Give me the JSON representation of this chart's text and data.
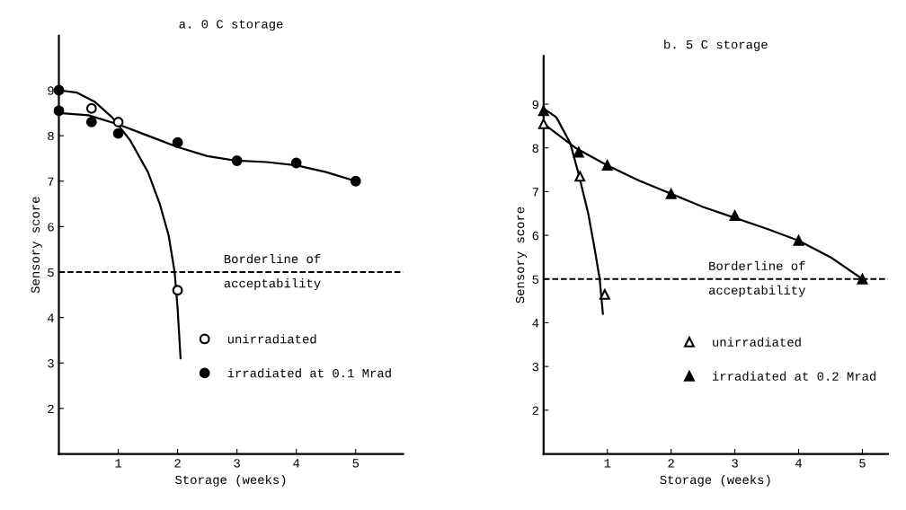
{
  "chart_data": [
    {
      "type": "scatter",
      "title": "a. 0 C storage",
      "xlabel": "Storage (weeks)",
      "ylabel": "Sensory score",
      "xlim": [
        0,
        5.8
      ],
      "ylim": [
        1,
        10.2
      ],
      "xticks": [
        1,
        2,
        3,
        4,
        5
      ],
      "yticks": [
        2,
        3,
        4,
        5,
        6,
        7,
        8,
        9
      ],
      "grid": false,
      "legend": "lower right",
      "ref_lines": [
        {
          "axis": "y",
          "value": 5,
          "label": "Borderline of\nacceptability",
          "color": "#000000",
          "line_style": "dashed"
        }
      ],
      "series": [
        {
          "type": "line",
          "color": "#000000",
          "marker": "none",
          "x": [
            0,
            0.3,
            0.6,
            0.9,
            1.2,
            1.5,
            1.7,
            1.85,
            1.95,
            2.0,
            2.05
          ],
          "values": [
            9,
            8.95,
            8.75,
            8.4,
            7.9,
            7.2,
            6.5,
            5.8,
            5.0,
            4.2,
            3.1
          ]
        },
        {
          "type": "line",
          "color": "#000000",
          "marker": "none",
          "x": [
            0,
            0.5,
            1,
            1.5,
            2,
            2.5,
            3,
            3.5,
            4,
            4.5,
            5
          ],
          "values": [
            8.5,
            8.45,
            8.25,
            8.0,
            7.75,
            7.55,
            7.45,
            7.42,
            7.35,
            7.2,
            7.0
          ]
        },
        {
          "name": "unirradiated",
          "color": "#ffffff",
          "marker": "circle",
          "x": [
            0.55,
            1,
            2
          ],
          "values": [
            8.6,
            8.3,
            4.6
          ]
        },
        {
          "name": "irradiated at 0.1 Mrad",
          "color": "#000000",
          "marker": "circle",
          "x": [
            0,
            0,
            0.55,
            1,
            2,
            3,
            4,
            5
          ],
          "values": [
            9.0,
            8.55,
            8.3,
            8.05,
            7.85,
            7.45,
            7.4,
            7.0
          ]
        }
      ]
    },
    {
      "type": "scatter",
      "title": "b. 5 C storage",
      "xlabel": "Storage (weeks)",
      "ylabel": "Sensory score",
      "xlim": [
        0,
        5.4
      ],
      "ylim": [
        1,
        10.1
      ],
      "xticks": [
        1,
        2,
        3,
        4,
        5
      ],
      "yticks": [
        2,
        3,
        4,
        5,
        6,
        7,
        8,
        9
      ],
      "grid": false,
      "legend": "lower right",
      "ref_lines": [
        {
          "axis": "y",
          "value": 5,
          "label": "Borderline of\nacceptability",
          "color": "#000000",
          "line_style": "dashed"
        }
      ],
      "series": [
        {
          "type": "line",
          "color": "#000000",
          "marker": "none",
          "x": [
            0,
            0.2,
            0.42,
            0.55,
            0.7,
            0.8,
            0.88,
            0.93
          ],
          "values": [
            8.9,
            8.7,
            8.1,
            7.4,
            6.5,
            5.7,
            5.0,
            4.2
          ]
        },
        {
          "type": "line",
          "color": "#000000",
          "marker": "none",
          "x": [
            0,
            0.5,
            1,
            1.5,
            2,
            2.5,
            3,
            3.5,
            4,
            4.5,
            5
          ],
          "values": [
            8.55,
            8.0,
            7.6,
            7.25,
            6.95,
            6.65,
            6.4,
            6.15,
            5.88,
            5.5,
            5.0
          ]
        },
        {
          "name": "unirradiated",
          "color": "#ffffff",
          "marker": "triangle",
          "x": [
            0,
            0.57,
            0.96
          ],
          "values": [
            8.55,
            7.35,
            4.65
          ]
        },
        {
          "name": "irradiated at 0.2 Mrad",
          "color": "#000000",
          "marker": "triangle",
          "x": [
            0,
            0.55,
            1,
            2,
            3,
            4,
            5
          ],
          "values": [
            8.85,
            7.9,
            7.6,
            6.95,
            6.45,
            5.88,
            5.0
          ]
        }
      ]
    }
  ]
}
